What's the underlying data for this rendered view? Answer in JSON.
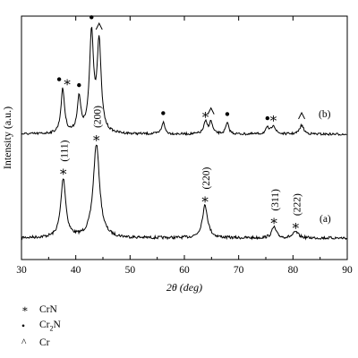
{
  "chart_data": {
    "type": "line",
    "xlabel": "2θ (deg)",
    "ylabel": "Intensity (a.u.)",
    "xlim": [
      30,
      90
    ],
    "xticks": [
      30,
      40,
      50,
      60,
      70,
      80,
      90
    ],
    "yticks": "none",
    "grid": false,
    "series": [
      {
        "name": "(a)",
        "peaks": [
          {
            "x": 37.7,
            "height": 0.6,
            "width": 0.55,
            "symbol": "asterisk",
            "label": "(111)"
          },
          {
            "x": 43.8,
            "height": 0.95,
            "width": 0.7,
            "symbol": "asterisk",
            "label": "(200)"
          },
          {
            "x": 63.8,
            "height": 0.33,
            "width": 0.6,
            "symbol": "asterisk",
            "label": "(220)"
          },
          {
            "x": 76.5,
            "height": 0.11,
            "width": 0.5,
            "symbol": "asterisk",
            "label": "(311)"
          },
          {
            "x": 80.5,
            "height": 0.06,
            "width": 0.6,
            "symbol": "asterisk",
            "label": "(222)"
          }
        ]
      },
      {
        "name": "(b)",
        "peaks": [
          {
            "x": 37.6,
            "height": 0.45,
            "width": 0.4,
            "symbol": "dot-asterisk"
          },
          {
            "x": 40.6,
            "height": 0.35,
            "width": 0.4,
            "symbol": "dot"
          },
          {
            "x": 42.9,
            "height": 1.0,
            "width": 0.45,
            "symbol": "dot"
          },
          {
            "x": 44.3,
            "height": 0.9,
            "width": 0.45,
            "symbol": "caret"
          },
          {
            "x": 56.1,
            "height": 0.12,
            "width": 0.35,
            "symbol": "dot"
          },
          {
            "x": 63.9,
            "height": 0.12,
            "width": 0.4,
            "symbol": "asterisk"
          },
          {
            "x": 64.9,
            "height": 0.12,
            "width": 0.35,
            "symbol": "caret"
          },
          {
            "x": 67.9,
            "height": 0.11,
            "width": 0.35,
            "symbol": "dot"
          },
          {
            "x": 75.3,
            "height": 0.06,
            "width": 0.4,
            "symbol": "dot"
          },
          {
            "x": 76.4,
            "height": 0.09,
            "width": 0.4,
            "symbol": "asterisk"
          },
          {
            "x": 81.6,
            "height": 0.09,
            "width": 0.45,
            "symbol": "caret"
          }
        ]
      }
    ],
    "legend": {
      "placement": "bottom-left",
      "entries": [
        {
          "symbol_icon": "asterisk-icon",
          "symbol_glyph": "∗",
          "label": "CrN"
        },
        {
          "symbol_icon": "dot-icon",
          "symbol_glyph": "•",
          "label_main": "Cr",
          "label_sub": "2",
          "label_tail": "N"
        },
        {
          "symbol_icon": "caret-icon",
          "symbol_glyph": "^",
          "label": "Cr"
        }
      ]
    }
  }
}
